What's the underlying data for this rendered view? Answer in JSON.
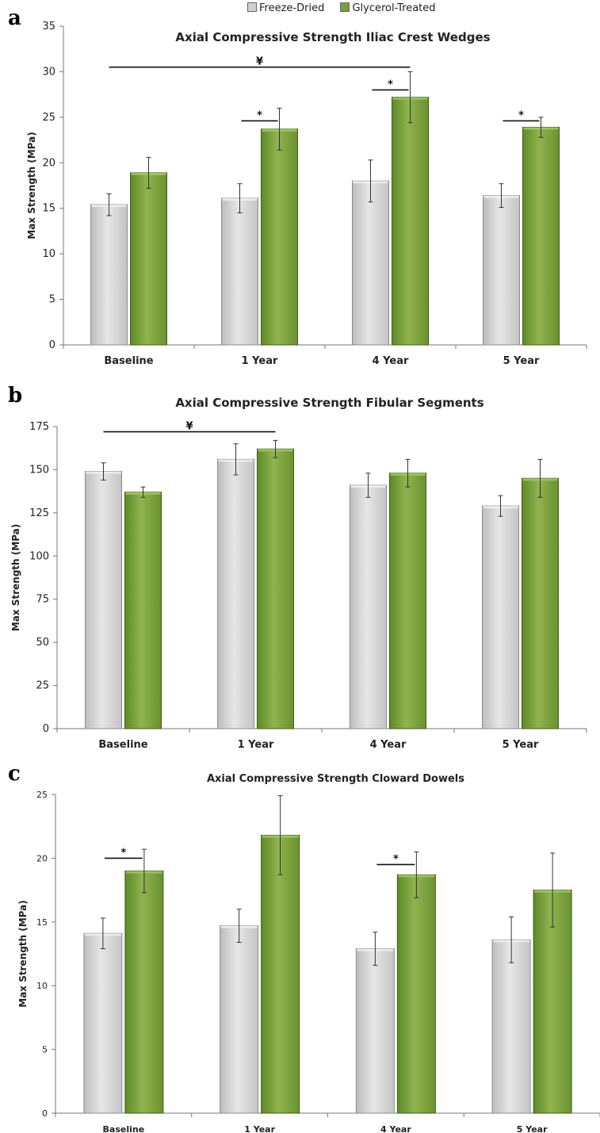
{
  "legend": {
    "series": [
      {
        "name": "Freeze-Dried",
        "color": "#cfcfcf"
      },
      {
        "name": "Glycerol-Treated",
        "color": "#7a9e3c"
      }
    ]
  },
  "panels": [
    {
      "letter": "a"
    },
    {
      "letter": "b"
    },
    {
      "letter": "c"
    }
  ],
  "chart_data": [
    {
      "type": "bar",
      "title": "Axial Compressive Strength Iliac Crest Wedges",
      "ylabel": "Max Strength (MPa)",
      "xlabel": "",
      "categories": [
        "Baseline",
        "1 Year",
        "4 Year",
        "5 Year"
      ],
      "ylim": [
        0,
        35
      ],
      "yticks": [
        0,
        5,
        10,
        15,
        20,
        25,
        30,
        35
      ],
      "grid": false,
      "legend_position": "top",
      "series": [
        {
          "name": "Freeze-Dried",
          "values": [
            15.4,
            16.1,
            18.0,
            16.4
          ],
          "errors": [
            1.2,
            1.6,
            2.3,
            1.3
          ]
        },
        {
          "name": "Glycerol-Treated",
          "values": [
            18.9,
            23.7,
            27.2,
            23.9
          ],
          "errors": [
            1.7,
            2.3,
            2.8,
            1.1
          ]
        }
      ],
      "annotations": [
        {
          "label": "¥",
          "from_category": 0,
          "to_category": 2,
          "level": 30.5
        },
        {
          "label": "*",
          "category": 1,
          "level": 24.6
        },
        {
          "label": "*",
          "category": 2,
          "level": 28.0
        },
        {
          "label": "*",
          "category": 3,
          "level": 24.6
        }
      ]
    },
    {
      "type": "bar",
      "title": "Axial Compressive Strength Fibular Segments",
      "ylabel": "Max Strength (MPa)",
      "xlabel": "",
      "categories": [
        "Baseline",
        "1 Year",
        "4 Year",
        "5 Year"
      ],
      "ylim": [
        0,
        175
      ],
      "yticks": [
        0,
        25,
        50,
        75,
        100,
        125,
        150,
        175
      ],
      "grid": false,
      "series": [
        {
          "name": "Freeze-Dried",
          "values": [
            149,
            156,
            141,
            129
          ],
          "errors": [
            5,
            9,
            7,
            6
          ]
        },
        {
          "name": "Glycerol-Treated",
          "values": [
            137,
            162,
            148,
            145
          ],
          "errors": [
            3,
            5,
            8,
            11
          ]
        }
      ],
      "annotations": [
        {
          "label": "¥",
          "from_category": 0,
          "to_category": 1,
          "level": 172
        }
      ]
    },
    {
      "type": "bar",
      "title": "Axial Compressive Strength Cloward Dowels",
      "ylabel": "Max Strength (MPa)",
      "xlabel": "",
      "categories": [
        "Baseline",
        "1 Year",
        "4 Year",
        "5 Year"
      ],
      "ylim": [
        0,
        25
      ],
      "yticks": [
        0,
        5,
        10,
        15,
        20,
        25
      ],
      "grid": false,
      "series": [
        {
          "name": "Freeze-Dried",
          "values": [
            14.1,
            14.7,
            12.9,
            13.6
          ],
          "errors": [
            1.2,
            1.3,
            1.3,
            1.8
          ]
        },
        {
          "name": "Glycerol-Treated",
          "values": [
            19.0,
            21.8,
            18.7,
            17.5
          ],
          "errors": [
            1.7,
            3.1,
            1.8,
            2.9
          ]
        }
      ],
      "annotations": [
        {
          "label": "*",
          "category": 0,
          "level": 20.0
        },
        {
          "label": "*",
          "category": 2,
          "level": 19.5
        }
      ]
    }
  ]
}
